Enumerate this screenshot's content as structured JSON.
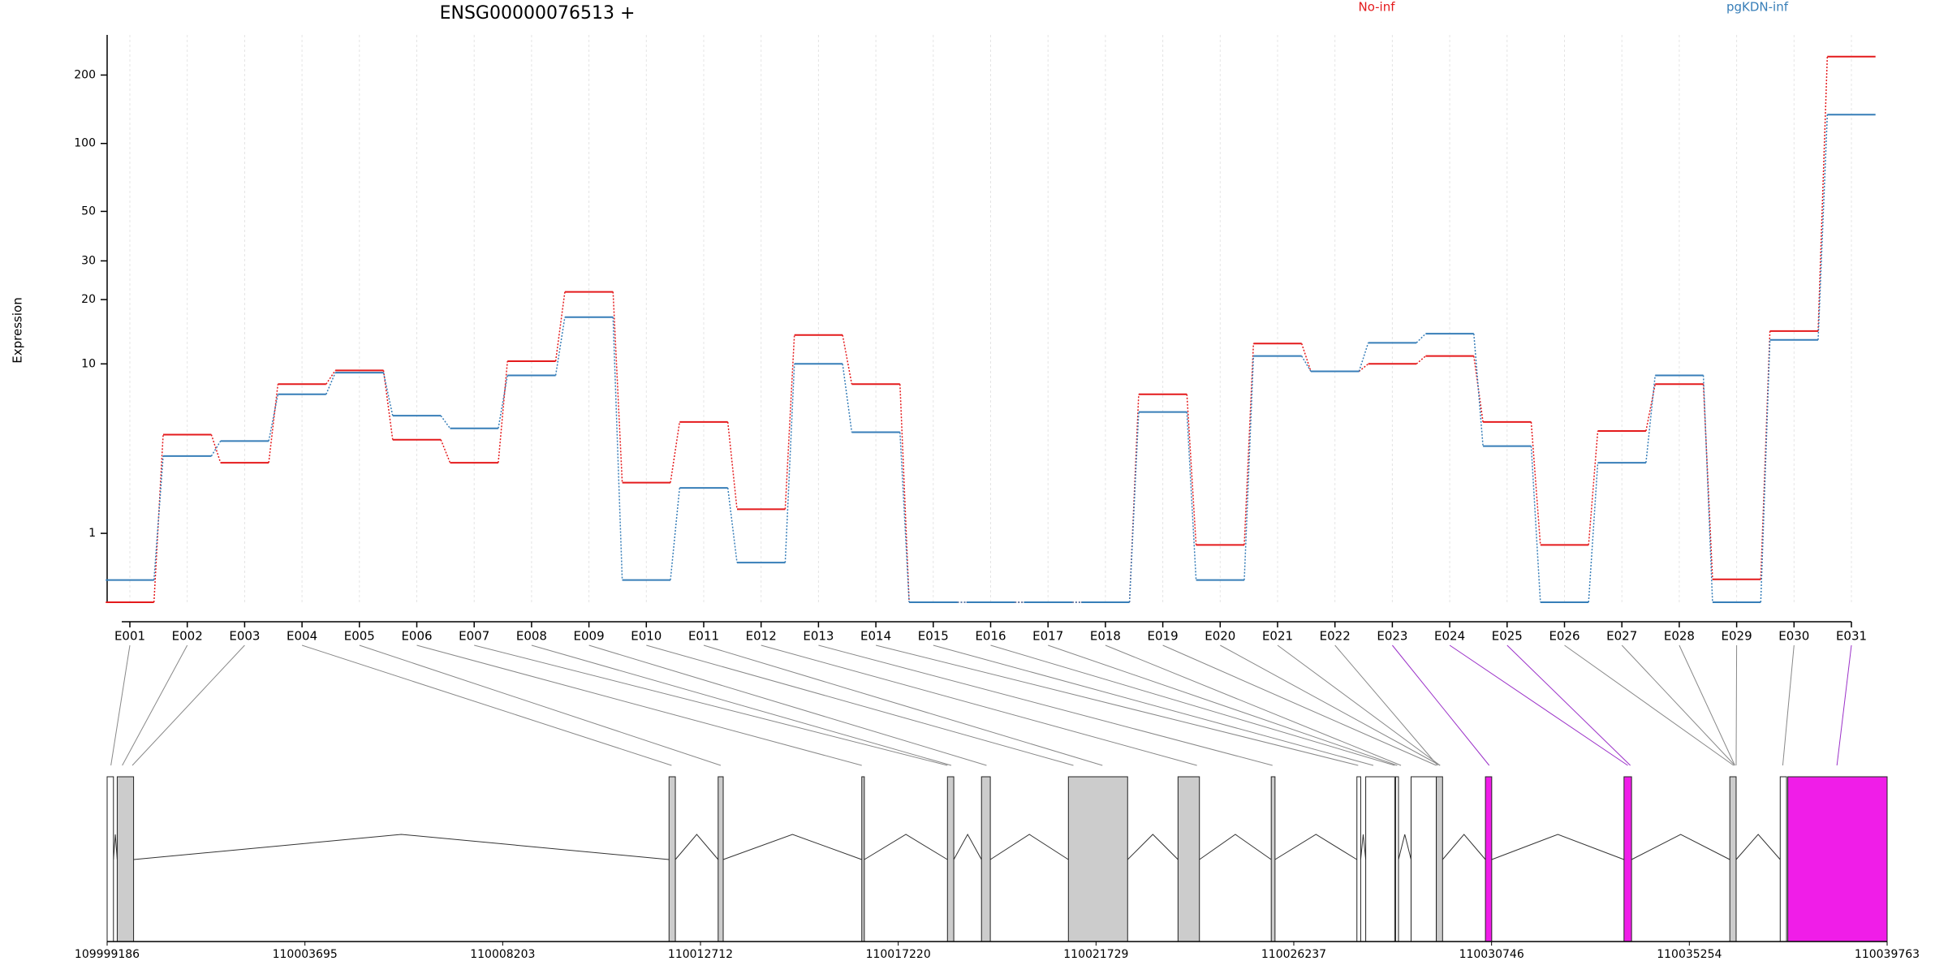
{
  "chart_data": {
    "type": "line",
    "title": "ENSG00000076513 +",
    "y_label": "Expression",
    "yscale": "log1p",
    "categories": [
      "E001",
      "E002",
      "E003",
      "E004",
      "E005",
      "E006",
      "E007",
      "E008",
      "E009",
      "E010",
      "E011",
      "E012",
      "E013",
      "E014",
      "E015",
      "E016",
      "E017",
      "E018",
      "E019",
      "E020",
      "E021",
      "E022",
      "E023",
      "E024",
      "E025",
      "E026",
      "E027",
      "E028",
      "E029",
      "E030",
      "E031"
    ],
    "series": [
      {
        "name": "No-inf",
        "color": "#e41a1c",
        "values": [
          0,
          4.4,
          3.07,
          7.97,
          9.3,
          4.13,
          3.07,
          10.3,
          21.7,
          2.33,
          5.13,
          1.55,
          13.7,
          7.97,
          0,
          0,
          0,
          0,
          7.1,
          0.78,
          12.5,
          9.2,
          10,
          10.9,
          5.13,
          0.78,
          4.6,
          7.97,
          0.26,
          14.3,
          241
        ]
      },
      {
        "name": "pgKDN-inf",
        "color": "#377eb8",
        "values": [
          0.25,
          3.35,
          4.06,
          7.1,
          9.07,
          5.53,
          4.75,
          8.8,
          16.6,
          0.25,
          2.16,
          0.49,
          10,
          4.53,
          0,
          0,
          0,
          0,
          5.78,
          0.25,
          10.9,
          9.2,
          12.6,
          13.9,
          3.81,
          0,
          3.07,
          8.8,
          0,
          13,
          134
        ]
      }
    ],
    "ylim": [
      0,
      300
    ],
    "yticks": [
      1,
      10,
      20,
      30,
      50,
      100,
      200
    ],
    "grid": true,
    "legend": "top-right"
  },
  "gene_model": {
    "xlim": [
      109999186,
      110039763
    ],
    "xticks": [
      109999186,
      110003695,
      110008203,
      110012712,
      110017220,
      110021729,
      110026237,
      110030746,
      110035254,
      110039763
    ],
    "exons": [
      {
        "start": 109999186,
        "end": 109999330,
        "color": "#ffffff"
      },
      {
        "start": 109999416,
        "end": 109999789,
        "color": "#cccccc"
      },
      {
        "start": 110011995,
        "end": 110012139,
        "color": "#cccccc"
      },
      {
        "start": 110013115,
        "end": 110013230,
        "color": "#cccccc"
      },
      {
        "start": 110016389,
        "end": 110016447,
        "color": "#cccccc"
      },
      {
        "start": 110018342,
        "end": 110018486,
        "color": "#cccccc"
      },
      {
        "start": 110019118,
        "end": 110019319,
        "color": "#cccccc"
      },
      {
        "start": 110021099,
        "end": 110022449,
        "color": "#cccccc"
      },
      {
        "start": 110023598,
        "end": 110024086,
        "color": "#cccccc"
      },
      {
        "start": 110025723,
        "end": 110025809,
        "color": "#cccccc"
      },
      {
        "start": 110027676,
        "end": 110027762,
        "color": "#ffffff"
      },
      {
        "start": 110027877,
        "end": 110028538,
        "color": "#ffffff"
      },
      {
        "start": 110028560,
        "end": 110028624,
        "color": "#ffffff"
      },
      {
        "start": 110028911,
        "end": 110029486,
        "color": "#ffffff"
      },
      {
        "start": 110029486,
        "end": 110029629,
        "color": "#cccccc"
      },
      {
        "start": 110030606,
        "end": 110030749,
        "color": "#f01de8"
      },
      {
        "start": 110033765,
        "end": 110033937,
        "color": "#f01de8"
      },
      {
        "start": 110036177,
        "end": 110036321,
        "color": "#cccccc"
      },
      {
        "start": 110037326,
        "end": 110037470,
        "color": "#ffffff"
      },
      {
        "start": 110037499,
        "end": 110039763,
        "color": "#f01de8"
      }
    ],
    "exon_positions": [
      109999272,
      109999531,
      109999760,
      110012053,
      110013173,
      110016389,
      110018342,
      110018429,
      110019233,
      110021214,
      110021875,
      110024029,
      110025752,
      110027705,
      110028050,
      110028538,
      110028595,
      110028681,
      110029486,
      110029572,
      110029572,
      110029515,
      110030692,
      110033851,
      110033909,
      110036264,
      110036292,
      110036292,
      110036321,
      110037384,
      110038619
    ]
  }
}
